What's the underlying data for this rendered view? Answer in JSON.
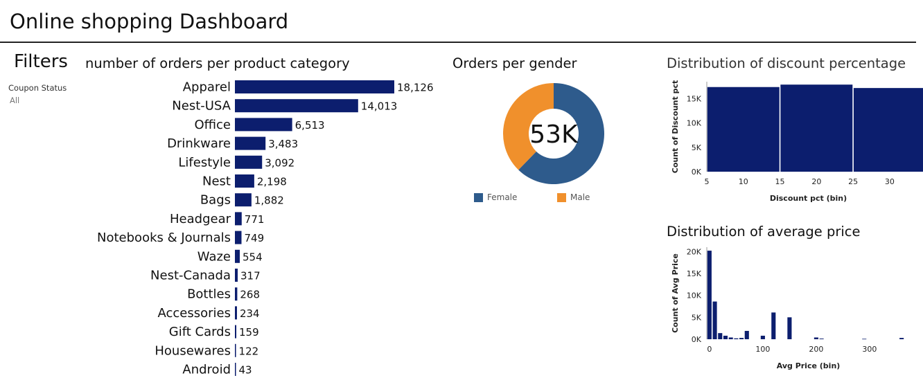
{
  "dashboard": {
    "title": "Online shopping Dashboard"
  },
  "filters": {
    "title": "Filters",
    "items": [
      {
        "label": "Coupon Status",
        "value": "All"
      }
    ]
  },
  "colors": {
    "bar": "#0c1e6e",
    "female": "#2e5b8c",
    "male": "#f0902c"
  },
  "chart_data": [
    {
      "type": "bar",
      "orientation": "horizontal",
      "title": "number of orders per product category",
      "categories": [
        "Apparel",
        "Nest-USA",
        "Office",
        "Drinkware",
        "Lifestyle",
        "Nest",
        "Bags",
        "Headgear",
        "Notebooks & Journals",
        "Waze",
        "Nest-Canada",
        "Bottles",
        "Accessories",
        "Gift Cards",
        "Housewares",
        "Android"
      ],
      "values": [
        18126,
        14013,
        6513,
        3483,
        3092,
        2198,
        1882,
        771,
        749,
        554,
        317,
        268,
        234,
        159,
        122,
        43
      ],
      "value_labels": [
        "18,126",
        "14,013",
        "6,513",
        "3,483",
        "3,092",
        "2,198",
        "1,882",
        "771",
        "749",
        "554",
        "317",
        "268",
        "234",
        "159",
        "122",
        "43"
      ]
    },
    {
      "type": "pie",
      "donut": true,
      "title": "Orders per gender",
      "center_label": "53K",
      "categories": [
        "Female",
        "Male"
      ],
      "values": [
        33000,
        20000
      ],
      "legend": [
        "Female",
        "Male"
      ],
      "legend_position": "bottom"
    },
    {
      "type": "bar",
      "title": "Distribution of discount percentage",
      "xlabel": "Discount pct (bin)",
      "ylabel": "Count of Discount pct",
      "x": [
        10,
        20,
        30
      ],
      "bin_width": 10,
      "values": [
        17400,
        17900,
        17200
      ],
      "xlim": [
        5,
        32
      ],
      "ylim": [
        0,
        18500
      ],
      "xticks": [
        5,
        10,
        15,
        20,
        25,
        30
      ],
      "yticks": [
        0,
        5000,
        10000,
        15000
      ],
      "ytick_labels": [
        "0K",
        "5K",
        "10K",
        "15K"
      ]
    },
    {
      "type": "bar",
      "title": "Distribution of average price",
      "xlabel": "Avg Price (bin)",
      "ylabel": "Count of Avg Price",
      "x": [
        0,
        10,
        20,
        30,
        40,
        50,
        60,
        70,
        100,
        120,
        150,
        200,
        210,
        290,
        360
      ],
      "bin_width": 10,
      "values": [
        20200,
        8600,
        1400,
        800,
        400,
        200,
        300,
        1900,
        800,
        6100,
        5000,
        400,
        150,
        100,
        300
      ],
      "xlim": [
        -5,
        365
      ],
      "ylim": [
        0,
        21000
      ],
      "xticks": [
        0,
        100,
        200,
        300
      ],
      "yticks": [
        0,
        5000,
        10000,
        15000,
        20000
      ],
      "ytick_labels": [
        "0K",
        "5K",
        "10K",
        "15K",
        "20K"
      ]
    }
  ]
}
